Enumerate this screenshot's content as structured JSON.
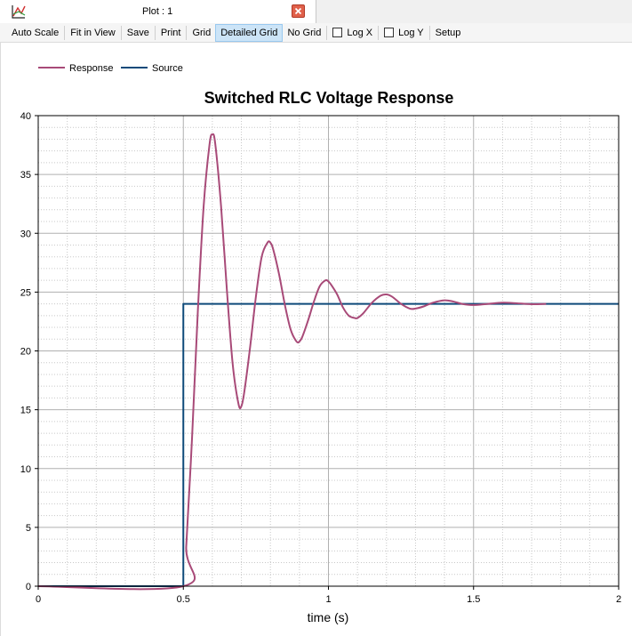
{
  "tab": {
    "title": "Plot : 1"
  },
  "toolbar": {
    "auto_scale": "Auto Scale",
    "fit_in_view": "Fit in View",
    "save": "Save",
    "print": "Print",
    "grid": "Grid",
    "detailed_grid": "Detailed Grid",
    "no_grid": "No Grid",
    "log_x": "Log X",
    "log_y": "Log Y",
    "setup": "Setup"
  },
  "colors": {
    "response": "#a84a78",
    "source": "#0e4a7a",
    "grid_major": "#b0b0b0",
    "grid_minor": "#c8c8c8"
  },
  "chart_data": {
    "type": "line",
    "title": "Switched RLC Voltage Response",
    "xlabel": "time (s)",
    "ylabel": "",
    "xlim": [
      0,
      2
    ],
    "ylim": [
      0,
      40
    ],
    "xticks": [
      "0",
      "0.5",
      "1",
      "1.5",
      "2"
    ],
    "yticks": [
      "0",
      "5",
      "10",
      "15",
      "20",
      "25",
      "30",
      "35",
      "40"
    ],
    "grid": "detailed",
    "legend_position": "top-left",
    "series": [
      {
        "name": "Response",
        "color": "#a84a78",
        "x": [
          0,
          0.5,
          0.51,
          0.53,
          0.55,
          0.57,
          0.59,
          0.6,
          0.61,
          0.63,
          0.65,
          0.67,
          0.69,
          0.7,
          0.71,
          0.73,
          0.75,
          0.77,
          0.79,
          0.8,
          0.81,
          0.83,
          0.85,
          0.87,
          0.89,
          0.9,
          0.91,
          0.93,
          0.95,
          0.97,
          0.99,
          1.0,
          1.01,
          1.03,
          1.05,
          1.07,
          1.09,
          1.1,
          1.12,
          1.15,
          1.18,
          1.2,
          1.22,
          1.25,
          1.28,
          1.3,
          1.33,
          1.36,
          1.4,
          1.43,
          1.46,
          1.5,
          1.55,
          1.6,
          1.65,
          1.7,
          1.75
        ],
        "y": [
          0,
          0,
          3.4,
          12.6,
          23.4,
          32.3,
          37.5,
          38.4,
          37.6,
          32.3,
          25.2,
          18.9,
          15.5,
          15.3,
          16.5,
          20.3,
          24.6,
          28.0,
          29.2,
          29.2,
          28.6,
          26.5,
          23.9,
          21.8,
          20.8,
          20.8,
          21.2,
          22.6,
          24.2,
          25.5,
          26.0,
          25.9,
          25.6,
          24.8,
          23.7,
          23.0,
          22.8,
          22.8,
          23.2,
          24.1,
          24.7,
          24.8,
          24.6,
          24.0,
          23.6,
          23.6,
          23.8,
          24.1,
          24.3,
          24.2,
          24.0,
          23.9,
          24.0,
          24.1,
          24.05,
          23.97,
          24.0
        ]
      },
      {
        "name": "Source",
        "color": "#0e4a7a",
        "x": [
          0,
          0.5,
          0.5,
          2
        ],
        "y": [
          0,
          0,
          24,
          24
        ]
      }
    ]
  }
}
